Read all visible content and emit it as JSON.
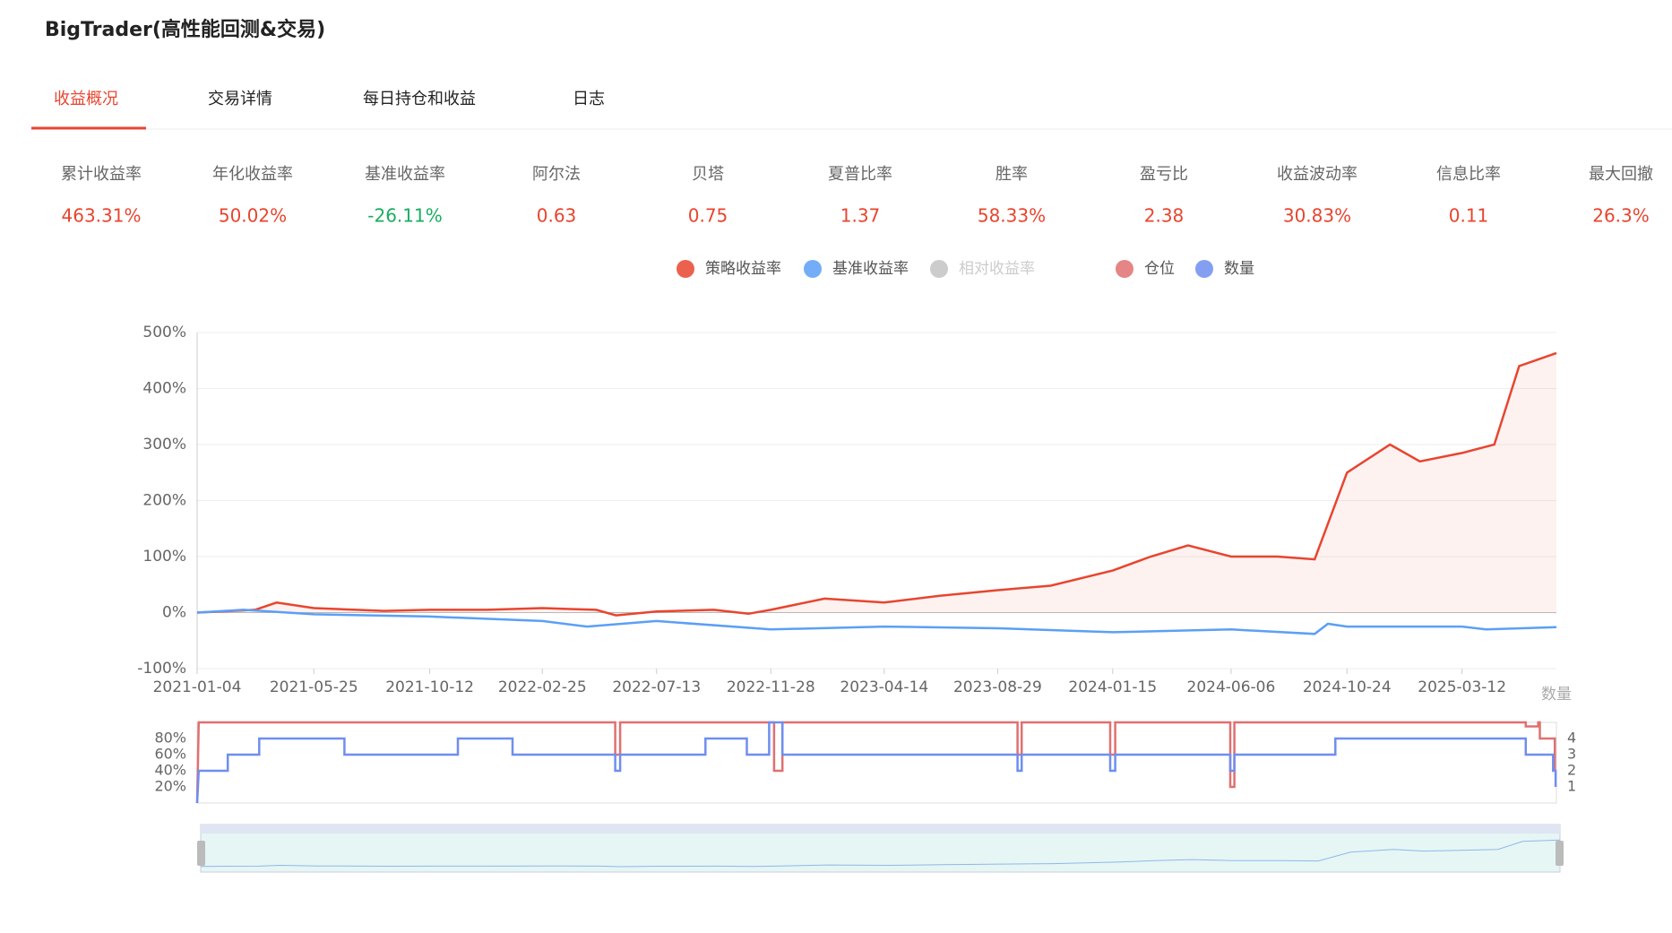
{
  "header": {
    "title": "BigTrader(高性能回测&交易)"
  },
  "tabs": [
    "收益概况",
    "交易详情",
    "每日持仓和收益",
    "日志"
  ],
  "metrics": [
    {
      "label": "累计收益率",
      "value": "463.31%",
      "color": "#e8452f"
    },
    {
      "label": "年化收益率",
      "value": "50.02%",
      "color": "#e8452f"
    },
    {
      "label": "基准收益率",
      "value": "-26.11%",
      "color": "#1aad5f"
    },
    {
      "label": "阿尔法",
      "value": "0.63",
      "color": "#e8452f"
    },
    {
      "label": "贝塔",
      "value": "0.75",
      "color": "#e8452f"
    },
    {
      "label": "夏普比率",
      "value": "1.37",
      "color": "#e8452f"
    },
    {
      "label": "胜率",
      "value": "58.33%",
      "color": "#e8452f"
    },
    {
      "label": "盈亏比",
      "value": "2.38",
      "color": "#e8452f"
    },
    {
      "label": "收益波动率",
      "value": "30.83%",
      "color": "#e8452f"
    },
    {
      "label": "信息比率",
      "value": "0.11",
      "color": "#e8452f"
    },
    {
      "label": "最大回撤",
      "value": "26.3%",
      "color": "#e8452f"
    }
  ],
  "chart_data": [
    {
      "type": "line",
      "xlim": [
        "2021-01-04",
        "2025-07-04"
      ],
      "xticks": [
        "2021-01-04",
        "2021-05-25",
        "2021-10-12",
        "2022-02-25",
        "2022-07-13",
        "2022-11-28",
        "2023-04-14",
        "2023-08-29",
        "2024-01-15",
        "2024-06-06",
        "2024-10-24",
        "2025-03-12"
      ],
      "ylim": [
        -100,
        500
      ],
      "yticks": [
        {
          "value": -100,
          "label": "-100%"
        },
        {
          "value": 0,
          "label": "0%"
        },
        {
          "value": 100,
          "label": "100%"
        },
        {
          "value": 200,
          "label": "200%"
        },
        {
          "value": 300,
          "label": "300%"
        },
        {
          "value": 400,
          "label": "400%"
        },
        {
          "value": 500,
          "label": "500%"
        }
      ],
      "grid": true,
      "series": [
        {
          "name": "策略收益率",
          "color": "#e8452f",
          "area": true,
          "x": [
            "2021-01-04",
            "2021-03-15",
            "2021-04-10",
            "2021-05-25",
            "2021-08-18",
            "2021-10-12",
            "2021-12-20",
            "2022-02-25",
            "2022-05-01",
            "2022-05-25",
            "2022-07-13",
            "2022-09-20",
            "2022-11-01",
            "2022-11-28",
            "2023-02-01",
            "2023-04-14",
            "2023-06-20",
            "2023-08-29",
            "2023-11-01",
            "2024-01-15",
            "2024-03-01",
            "2024-04-15",
            "2024-06-06",
            "2024-08-01",
            "2024-09-15",
            "2024-10-24",
            "2024-12-15",
            "2025-01-20",
            "2025-03-12",
            "2025-04-20",
            "2025-05-20",
            "2025-07-04"
          ],
          "values": [
            0,
            5,
            18,
            8,
            3,
            5,
            5,
            8,
            5,
            -5,
            2,
            5,
            -2,
            5,
            25,
            18,
            30,
            40,
            48,
            75,
            100,
            120,
            100,
            100,
            95,
            250,
            300,
            270,
            285,
            300,
            440,
            463.31
          ]
        },
        {
          "name": "基准收益率",
          "color": "#5b9ff7",
          "x": [
            "2021-01-04",
            "2021-03-01",
            "2021-05-25",
            "2021-10-12",
            "2022-02-25",
            "2022-04-20",
            "2022-07-13",
            "2022-11-28",
            "2023-04-14",
            "2023-08-29",
            "2024-01-15",
            "2024-06-06",
            "2024-09-15",
            "2024-10-01",
            "2024-10-24",
            "2025-03-12",
            "2025-04-10",
            "2025-07-04"
          ],
          "values": [
            0,
            5,
            -3,
            -7,
            -15,
            -25,
            -15,
            -30,
            -25,
            -28,
            -35,
            -30,
            -38,
            -20,
            -25,
            -25,
            -30,
            -26.11
          ]
        }
      ],
      "hidden_series": [
        {
          "name": "相对收益率",
          "color": "#cccccc"
        }
      ]
    },
    {
      "type": "step",
      "xlim": [
        "2021-01-04",
        "2025-07-04"
      ],
      "ylim": [
        0,
        100
      ],
      "yticks": [
        {
          "value": 20,
          "label": "20%"
        },
        {
          "value": 40,
          "label": "40%"
        },
        {
          "value": 60,
          "label": "60%"
        },
        {
          "value": 80,
          "label": "80%"
        }
      ],
      "y2lim": [
        0,
        5
      ],
      "y2ticks": [
        1,
        2,
        3,
        4
      ],
      "y2_label": "数量",
      "series": [
        {
          "name": "仓位",
          "color": "#e07070",
          "x": [
            "2021-01-04",
            "2021-01-06",
            "2022-05-24",
            "2022-05-24",
            "2022-05-30",
            "2022-05-30",
            "2022-12-02",
            "2022-12-02",
            "2022-12-12",
            "2022-12-12",
            "2023-09-22",
            "2023-09-22",
            "2023-09-27",
            "2023-09-27",
            "2024-01-12",
            "2024-01-12",
            "2024-01-18",
            "2024-01-18",
            "2024-06-05",
            "2024-06-05",
            "2024-06-10",
            "2024-06-10",
            "2025-05-28",
            "2025-05-28",
            "2025-06-12",
            "2025-06-12",
            "2025-06-14",
            "2025-06-14",
            "2025-07-02",
            "2025-07-02"
          ],
          "values": [
            0,
            100,
            100,
            60,
            60,
            100,
            100,
            40,
            40,
            100,
            100,
            60,
            60,
            100,
            100,
            60,
            60,
            100,
            100,
            20,
            20,
            100,
            100,
            95,
            95,
            100,
            100,
            80,
            80,
            40
          ]
        },
        {
          "name": "数量",
          "color": "#6e8ef0",
          "axis": "y2",
          "x": [
            "2021-01-04",
            "2021-01-06",
            "2021-02-10",
            "2021-02-10",
            "2021-03-20",
            "2021-03-20",
            "2021-07-01",
            "2021-07-01",
            "2021-11-15",
            "2021-11-15",
            "2022-01-20",
            "2022-01-20",
            "2022-05-24",
            "2022-05-24",
            "2022-05-30",
            "2022-05-30",
            "2022-09-10",
            "2022-09-10",
            "2022-10-30",
            "2022-10-30",
            "2022-11-26",
            "2022-11-26",
            "2022-12-12",
            "2022-12-12",
            "2023-09-22",
            "2023-09-22",
            "2023-09-27",
            "2023-09-27",
            "2024-01-12",
            "2024-01-12",
            "2024-01-18",
            "2024-01-18",
            "2024-06-05",
            "2024-06-05",
            "2024-06-10",
            "2024-06-10",
            "2024-10-10",
            "2024-10-10",
            "2025-05-28",
            "2025-05-28",
            "2025-06-30",
            "2025-06-30",
            "2025-07-03",
            "2025-07-03"
          ],
          "values": [
            0,
            2,
            2,
            3,
            3,
            4,
            4,
            3,
            3,
            4,
            4,
            3,
            3,
            2,
            2,
            3,
            3,
            4,
            4,
            3,
            3,
            5,
            5,
            3,
            3,
            2,
            2,
            3,
            3,
            2,
            2,
            3,
            3,
            2,
            2,
            3,
            3,
            4,
            4,
            3,
            3,
            2,
            2,
            1
          ]
        }
      ]
    }
  ]
}
